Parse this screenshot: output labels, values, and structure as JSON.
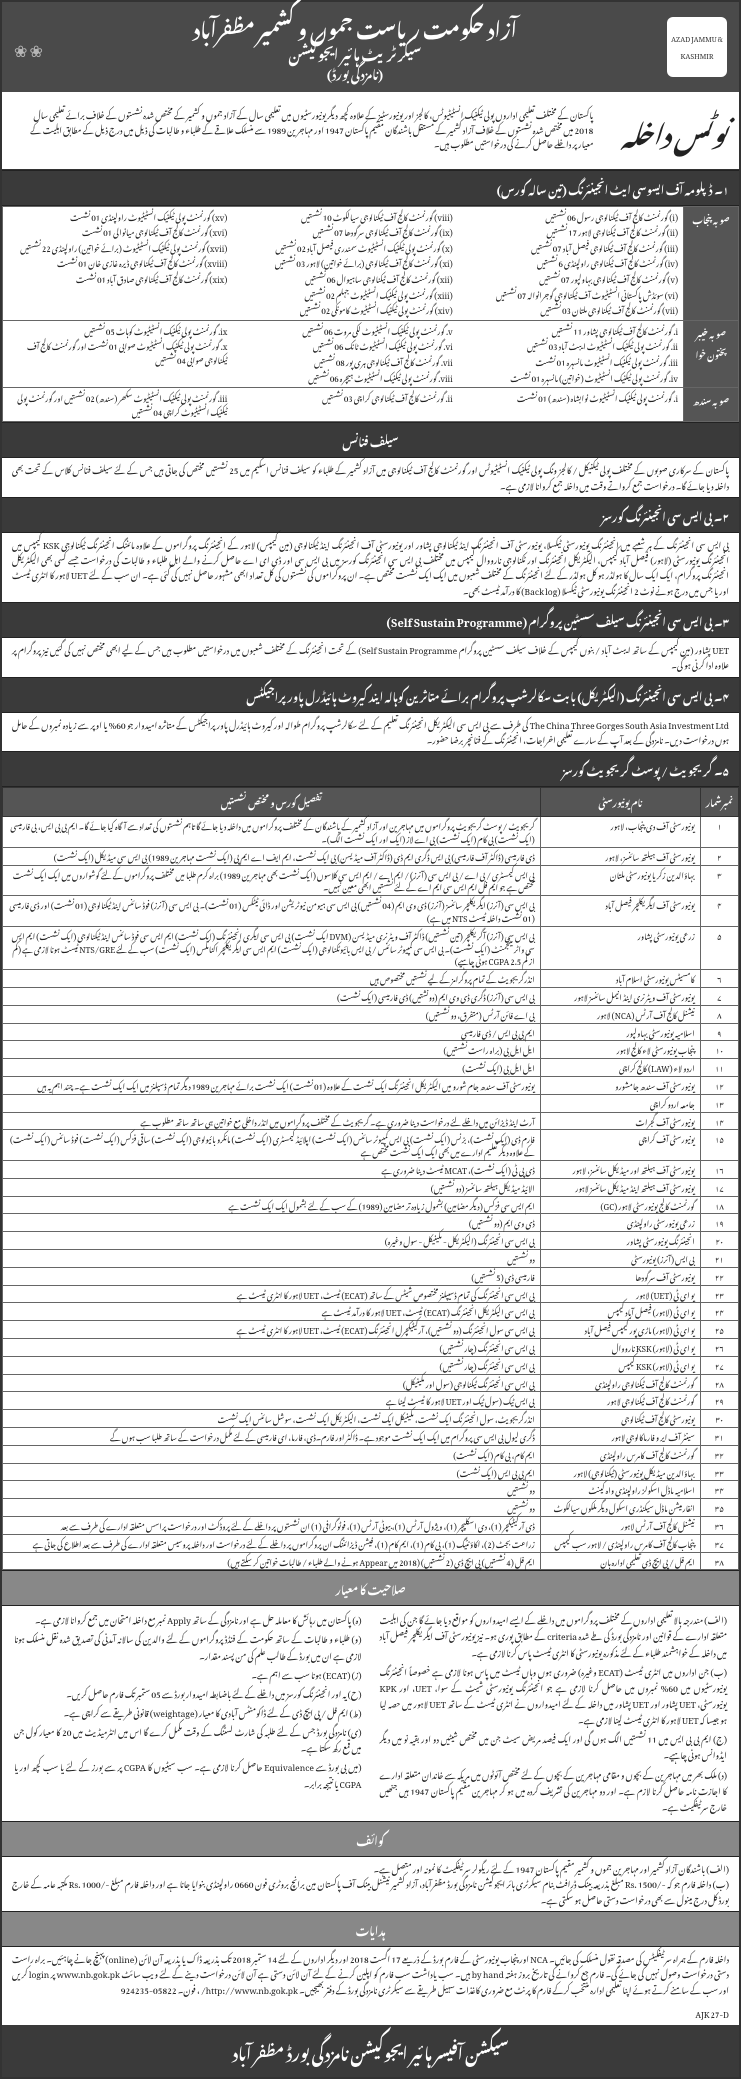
{
  "header": {
    "logo_text": "AZAD JAMMU & KASHMIR",
    "title": "آزاد حکومت ریاست جموں و کشمیر مظفرآباد",
    "subtitle": "سیکرٹریٹ ہائیر ایجوکیشن",
    "board": "(نامزدگی بورڈ)"
  },
  "notice": {
    "heading": "نوٹس داخلہ",
    "body": "پاکستان کے مختلف تعلیمی اداروں پولی ٹیکنیک انسٹیٹیوٹس، کالجز اور یونیورسٹیز کے علاوہ کچھ دیگر یونیورسٹیوں میں تعلیمی سال کے آزاد جموں و کشمیر کے مختص شدہ نشستوں کے خلاف برائے تعلیمی سال 2018 میں مختص شدہ نشستوں کے خلاف آزاد کشمیر کے مستقل باشندگان مقیم پاکستان 1947 اور مہاجرین 1989 سے منسلک علاقے کے طلباء و طالبات کی ذیل میں درج ذیل کے مطابق اہلیت کے معیار پر داخلے حاصل کرنے کی درخواستیں مطلوب ہیں۔"
  },
  "sec1": {
    "title": "۱۔ ڈپلومہ آف ایسوسی ایٹ انجینئرنگ (تین سالہ کورس)"
  },
  "punjab": {
    "label": "صوبہ پنجاب",
    "items": [
      "(i) گورنمنٹ کالج آف ٹیکنالوجی رسول 06 نشستیں",
      "(ii) گورنمنٹ کالج آف ٹیکنالوجی لاہور 17 نشستیں",
      "(iii) گورنمنٹ کالج آف ٹیکنالوجی فیصل آباد 07 نشستیں",
      "(iv) گورنمنٹ کالج آف ٹیکنالوجی راولپنڈی 6 نشستیں",
      "(v) گورنمنٹ کالج آف ٹیکنالوجی بہاولپور 07 نشستیں",
      "(vi) سوئڈش پاکستانی انسٹیٹیوٹ آف ٹیکنالوجی گوجرانوالہ 07 نشستیں",
      "(vii) گورنمنٹ کالج آف ٹیکنالوجی ملتان 03 نشستیں",
      "(viii) گورنمنٹ کالج آف ٹیکنالوجی سیالکوٹ 10 نشستیں",
      "(ix) گورنمنٹ کالج آف ٹیکنالوجی سرگودھا 07 نشستیں",
      "(x) گورنمنٹ پولی ٹیکنیک انسٹیٹیوٹ سمندری فیصل آباد 02 نشستیں",
      "(xi) گورنمنٹ کالج آف ٹیکنالوجی (برائے خواتین) لاہور 03 نشستیں",
      "(xii) گورنمنٹ کالج آف ٹیکنالوجی ساہیوال 06 نشستیں",
      "(xiii) گورنمنٹ پولی ٹیکنیک انسٹیٹیوٹ جہلم 02 نشستیں",
      "(xiv) گورنمنٹ پولی ٹیکنیک انسٹیٹیوٹ کامونکی 02 نشستیں",
      "(xv) گورنمنٹ پولی ٹیکنیک انسٹیٹیوٹ راولپنڈی 01 نشست",
      "(xvi) گورنمنٹ کالج آف ٹیکنالوجی میانوالی 01 نشست",
      "(xvii) گورنمنٹ پولی ٹیکنیک انسٹیٹیوٹ (برائے خواتین) راولپنڈی 22 نشستیں",
      "(xviii) گورنمنٹ کالج آف ٹیکنالوجی ڈیرہ غازی خان 01 نشست",
      "(xix) گورنمنٹ کالج آف ٹیکنالوجی صادق آباد 01 نشست"
    ]
  },
  "kpk": {
    "label": "صوبہ خیبر پختون خوا",
    "items": [
      "i. گورنمنٹ کالج آف ٹیکنالوجی پشاور 11 نشستیں",
      "ii. گورنمنٹ پولی ٹیکنیک انسٹیٹیوٹ ایبٹ آباد 03 نشستیں",
      "iii. گورنمنٹ پولی ٹیکنیک انسٹیٹیوٹ مانسہرہ 01 نشست",
      "iv. گورنمنٹ پولی ٹیکنیک انسٹیٹیوٹ (خواتین) مانسہرہ 01 نشست",
      "v. گورنمنٹ پولی ٹیکنیک انسٹیٹیوٹ لکی مروت 06 نشستیں",
      "vi. گورنمنٹ پولی ٹیکنیک انسٹیٹیوٹ ٹانک 06 نشستیں",
      "vii. گورنمنٹ کالج آف ٹیکنالوجی ہری پور 08 نشستیں",
      "viii. گورنمنٹ پولی ٹیکنیک انسٹیٹیوٹ ہیچرہ 06 نشستیں",
      "ix. گورنمنٹ پولی ٹیکنیک انسٹیٹیوٹ کوہاٹ 05 نشستیں",
      "x. گورنمنٹ پولی ٹیکنیک انسٹیٹیوٹ صوابی 01 نشست اور گورنمنٹ کالج آف ٹیکنالوجی صوابی 04 نشستیں"
    ]
  },
  "sindh": {
    "label": "صوبہ سندھ",
    "items": [
      "i. گورنمنٹ پولی ٹیکنیک انسٹیٹیوٹ نوابشاہ (سندھ) 01 نشست",
      "ii. گورنمنٹ کالج آف ٹیکنالوجی کراچی 03 نشستیں",
      "iii. گورنمنٹ پولی ٹیکنیک انسٹیٹیوٹ سکھر (سندھ) 02 نشستیں اور گورنمنٹ پولی ٹیکنیک انسٹیٹیوٹ کراچی 04 نشستیں"
    ]
  },
  "selffinance": {
    "title": "سیلف فنانس",
    "body": "پاکستان کے سرکاری صوبوں کے مختلف پولی ٹیکنیکل / کالجز ونگ پولی ٹیکنیک انسٹیٹیوٹس اور گورنمنٹ کالج آف ٹیکنالوجی میں آزاد کشمیر کے طلباء کو سیلف فنانس اسکیم میں 25 نشستیں مختص کی جاتی ہیں جس کے لئے سیلف فنانس کلاس کے تحت بھی داخلہ دیا جائے گا۔ درخواست جمع کرواتے وقت میں داخلہ جمع کروانا لازمی ہے۔"
  },
  "sec2": {
    "title": "۲۔ بی ایس سی انجینئرنگ کورسز",
    "body": "بی ایس سی انجینئرنگ کے ہر شعبے میں انجینئرنگ یونیورسٹی ٹیکسلا، یونیورسٹی آف انجینئرنگ اینڈ ٹیکنالوجی پشاور اور یونیورسٹی آف انجینئرنگ اینڈ ٹیکنالوجی (مین کیمپس) لاہور کے انجینئرنگ پروگراموں کے علاوہ مائننگ انجینئرنگ ٹیکنالوجی KSK کیمپس میں انجینئرنگ یونیورسٹی (لاہور) فیصل آباد کیمپس، الیکٹریکل انجینئرنگ اور ٹکنالوجی نارووال کیمپس میں مختلف بی ایس سی انجینئرنگ کورسز میں بی ایس سی اور ڈی ای اے حاصل کرنے والے اہل طلباء و طالبات کی درخواست جسے کسی بھی الیکٹریکل انجینئرنگ پروگرام، ایک ایک سال کا ہولڈر ہو کل ہولڈر کے لئے انجینئرنگ کے مختلف شعبوں میں ایک ایک نشست مختص ہے۔ ان پروگراموں کی نشستوں کی کل تعداد ابھی مشہور حاصل نہیں کی گئی ہے۔ ان سب کے لئے UET لاہور کا انٹری ٹیسٹ اور یا جس میں درج ہونے نوٹ 2 انجینئرنگ یونیورسٹی ٹیکسلا (Back log) کا درآمد ٹیسٹ بھی۔"
  },
  "sec3": {
    "title": "۳۔ بی ایس سی انجینئرنگ سیلف سسٹین پروگرام (Self Sustain Programme)",
    "body": "UET پشاور (مین کیمپس کے ساتھ ایبٹ آباد / بنوں کیمپس کے خلاف سیلف سسٹین پروگرام Self Sustain Programme) کے تحت انجینئرنگ کے مختلف شعبوں میں درخواستیں مطلوب ہیں جس کے لیے ابھی مختص نہیں کی گئیں نیز پروگرام پر علاوہ ادا کرنی ہو گی۔"
  },
  "sec4": {
    "title": "۴۔ بی ایس سی انجینئرنگ (الیکٹریکل) بابت سکالرشپ پروگرام برائے متاثرین کوہالہ ایند کیروٹ ہائیڈرل پاور پراجیکٹس",
    "body": "The China Three Gorges South Asia Investment Ltd کی طرف سے بی ایس سی الیکٹریکل انجینئرنگ تعلیم کے لئے سکالرشپ پروگرام طوالہ اور کیروٹ ہائیڈرل پاور پراجیکٹس کے متاثرہ امیدوار جو 60% یا اوپر سے زیادہ نمبروں کے حامل ہوں درخواست دیں۔ نامزدگی کے بعد آپ کے سارے تعلیمی اخراجات، انجینئرنگ کے فنانچر برضا حضور۔"
  },
  "sec5": {
    "title": "۵۔ گریجویٹ / پوسٹ گریجویٹ کورسز"
  },
  "uni_headers": {
    "num": "نمبرشمار",
    "name": "نام یونیورسٹی",
    "detail": "تفصیل کورس و مختص نشستیں"
  },
  "unis": [
    {
      "n": "۱",
      "name": "یونیورسٹی آف دی پنجاب، لاہور",
      "d": "گریجویٹ / پوسٹ گریجویٹ پروگراموں میں مہاجرین اور آزاد کشمیر کے باشندگان کے مختلف پروگراموں میں داخلہ دیا جائے گا تاہم نشستوں کی تعداد سے آگاہ کیا جائے گا۔ ایم بی بی ایس، بی فارمیسی (ایک نشست) بی کام (ایک نشست) بی اے لاز (ایک اور ایک نشست الگ)۔"
    },
    {
      "n": "۲",
      "name": "یونیورسٹی آف ہیلتھ سائنسز، لاہور",
      "d": "ڈی فارمیسی (ڈاکٹر آف فارمیسی) بی ایس ڈگری ایم ڈی (ڈاکٹر آف میڈیسن) بی ایک نشست، ایم ایف اے ایم پی (ایک نشست مہاجرین 1989) بی ایس سی میڈیکل (ایک نشست)"
    },
    {
      "n": "۳",
      "name": "بہاؤالدین زکریا یونیورسٹی ملتان",
      "d": "بی ایس کیمسٹری / بی اے / بی ایس سی (آنرز) / ایم اے / ایم ایس سی کلاسوں (ایک نشست بھی مہاجرین 1989) براہ کرم طلبا میں مختلف پروگراموں کے لئے گوشواروں میں ایک ایک نشست مختص ہے جو ایم فل ایم ایس سی ایم اے کے لئے نشستیں ابھی معین نہیں۔"
    },
    {
      "n": "۴",
      "name": "یونیورسٹی آف ایگریکلچر فیصل آباد",
      "d": "بی ایس سی (آنرز) ایگریکلچر سائنسز (آنرز) ڈی وی ایم (04 نشستیں) بی ایس سی ہیومن نیوٹریشن اور ڈائی ٹیٹکس (01 نشست)۔ بی ایس سی (آنرز) فوڈ سائنس اینڈ ٹیکنالوجی (01 نشست) اور ڈی فارمیسی (01 نشست داخلہ ٹیسٹ NTS میں ہے)"
    },
    {
      "n": "۵",
      "name": "زرعی یونیورسٹی پشاور",
      "d": "بی ایس سی (آنرز) آگریکلچر (تین نشستیں) ڈاکٹر آف ویٹرنری میڈیسن (DVM ایک نشست) بی ایس سی ایگری انجینئرنگ (ایک نشست) ایم ایس سی فوڈ سائنس اینڈ ٹیکنالوجی (ایک نشست) ایم ایس سی واٹر مینجمنٹ (ایک نشست)۔ بی ایس سی کمپیوٹر سائنس / بی ایس بائیوٹکنالوجی (ایک نشست) ایم ایس سی ایگریکلچر اکنامکس (ایک نشست) سب کے لئے NTS/GRE ٹیسٹ ہونا لازمی ہے (کم از کم CGPA 2.5 ہونی چاہیے)"
    },
    {
      "n": "۶",
      "name": "کامسیٹس یونیورسٹی اسلام آباد",
      "d": "انڈرگریجویٹ کے تمام پروگرامز کے لیے نشستیں مختصوص ہیں"
    },
    {
      "n": "۷",
      "name": "یونیورسٹی آف ویٹرنری اینڈ انیمل سائنسز لاہور",
      "d": "بی ایس سی (آنرز) ڈگری ڈی وی ایم (دونشتیں) ڈی فارمیسی (ایک نشست)"
    },
    {
      "n": "۸",
      "name": "نیشنل کالج آف آرٹس (NCA) لاہور",
      "d": "بی اے فائن آرٹس (متفرق، دو نشستیں)"
    },
    {
      "n": "۹",
      "name": "اسلامیہ یونیورسٹی بہاولپور",
      "d": "ایم بی بی ایس / ڈی فارمیسی"
    },
    {
      "n": "۱۰",
      "name": "پنجاب یونیورسٹی لاء کالج لاہور",
      "d": "ایل ایل بی (براہ راست نشستیں)"
    },
    {
      "n": "۱۱",
      "name": "اردو لاء (LAW) کالج کراچی",
      "d": "ایل ایل بی (ایک نشست)"
    },
    {
      "n": "۱۲",
      "name": "یونیورسٹی آف سندھ جامشورو",
      "d": "یونیورسٹی آف سندھ جام شورو میں الیکٹریکل انجینئرنگ ایک نشست کے علاوہ (01 نشست) ایک نشست برائے مہاجرین 1989 دیگر تمام ڈسپلنز میں ایک ایک نشست ہے۔ چند اہم یہ ہیں"
    },
    {
      "n": "۱۳",
      "name": "جامعہ اردو کراچی",
      "d": ""
    },
    {
      "n": "۱۴",
      "name": "یونیورسٹی آف گجرات",
      "d": "آرٹ اینڈ ڈیزائن میں داخلے لئے درخواست دینا ضروری ہے۔ گریجویٹ کے مختلف پروگراموں میں انڈر داخلی مع خواتین ہی ساتھ ساتھ مطلوب ہے"
    },
    {
      "n": "۱۵",
      "name": "یونیورسٹی آف کراچی",
      "d": "فارم ڈی (ایک نشست)، بزنس (ایک نشست) بی ایس کمپیوٹر سائنس (ایک نشست) اپلائیڈ کیمسٹری (ایک نشست) مائکرو بائیولوجی (ایک نشست) ساقی فزکس (ایک نشست) فوڈ سائنس (ایک نشست) کے علاوہ دیگر تعلیم ادارے میں بھی ایک ایک نشست مختص ہے"
    },
    {
      "n": "۱۶",
      "name": "یونیورسٹی آف ہیلتھ اور میڈیکل سائنسز، لاہور",
      "d": "ڈی پی ٹی (ایک نشست)، MCAT ٹیسٹ دینا ضروری ہے"
    },
    {
      "n": "۱۷",
      "name": "یونیورسٹی آف ہیلتھ اینڈ میڈیکل سائنسز لاہور",
      "d": "الائیڈ میڈیکل ہیلتھ سائنسز (دو نشستیں)"
    },
    {
      "n": "۱۸",
      "name": "گورنمنٹ کالج یونیورسٹی لاہور (GC)",
      "d": "ایم ایس سی فزکس (دیگر مضامین) بشمول زیادہ تر مضامین (1989) کے سب کے لئے بشمول ایک ایک نشست ہے"
    },
    {
      "n": "۱۹",
      "name": "زرعی یونیورسٹی راولپنڈی",
      "d": "ڈی وی ایم (دو نشستیں)"
    },
    {
      "n": "۲۰",
      "name": "انجینئرنگ یونیورسٹی پشاور",
      "d": "بی ایس سی انجینئرنگ (الیکٹریکل - مکینیکل - سول وغیرہ)"
    },
    {
      "n": "۲۱",
      "name": "بی ایس (آنرز) یونیورسٹی",
      "d": "دو نشستیں"
    },
    {
      "n": "۲۲",
      "name": "یونیورسٹی آف سرگودھا",
      "d": "فارمیسی ڈی (5 نشستیں)"
    },
    {
      "n": "۲۳",
      "name": "یو ای ٹی (UET) لاہور",
      "d": "بی ایس سی انجینئرنگ کی تمام ڈسیپلنز مختصوص شیٹس کے ساتھ (ECAT) ٹیسٹ، UET لاہور کا انٹری ٹیسٹ ہے"
    },
    {
      "n": "۲۴",
      "name": "یو ای ٹی (لاہور) فیصل آباد کیمپس",
      "d": "بی ایس سی الیکٹریکل انجینئرنگ (ECAT) ٹیسٹ، UET لاہور کا درآمد ٹیسٹ ہے"
    },
    {
      "n": "۲۵",
      "name": "یو ای ٹی (لاہور) ماڑی پور کیمپس فیصل آباد",
      "d": "بی ایس سی سول انجینئرنگ (دو نشستیں)، آرکیٹیکچرل انجینئرنگ (ECAT) ٹیسٹ، UET لاہور کا انٹری ٹیسٹ ہے"
    },
    {
      "n": "۲۶",
      "name": "یو ای ٹی (لاہور) KSK نارووال",
      "d": "بی ایس سی انجینئرنگ (چار نشستیں)"
    },
    {
      "n": "۲۷",
      "name": "یو ای ٹی (لاہور) KSK کیمپس",
      "d": "بی ایس سی انجینئرنگ (چار نشستیں)"
    },
    {
      "n": "۲۸",
      "name": "گورنمنٹ کالج آف ٹیکنالوجی راولپنڈی",
      "d": "بی ایس سی انجینئرنگ ٹیکنالوجی (سول اور مکینیکل)"
    },
    {
      "n": "۲۹",
      "name": "گورنمنٹ کالج آف ٹیکنالوجی لاہور",
      "d": "بی ایس ٹیک (سول ٹیک اور UET لاہور کا ٹیسٹ لینا ہے"
    },
    {
      "n": "۳۰",
      "name": "یونیورسٹی کالج آف ٹیکنالوجی",
      "d": "انڈرگریجویٹ، سول انجینئرنگ ایک نشست، مکینیکل ایک نشست، الیکٹریکل ایک نشست، سوشل سائنس ایک نشست"
    },
    {
      "n": "۳۱",
      "name": "سینٹر آف ایر و فارماکالوجی لاہور",
      "d": "ڈگری لیول بی ایس سی پروگرام میں ایک ایک نشست موجود ہے۔ ڈاکٹر اور فارم۔ڈی، فارما، ای فارمیسی کے لئے مکمل درخواست کے ساتھ طلبا سب ہوں گے"
    },
    {
      "n": "۳۲",
      "name": "گورنمنٹ کالج آف کامرس راولپنڈی",
      "d": "ایم کام، بی کام (ایک نشست)"
    },
    {
      "n": "۳۳",
      "name": "بہاؤالدین میڈیکل یونیورسٹی (ٹیکنالوجی) لاہور",
      "d": "ایم بی بی ایس (ایک نشست)"
    },
    {
      "n": "۳۴",
      "name": "اسلامیہ ماڈل اسکولز راولپنڈی واہ کینٹ",
      "d": "دو نشستیں"
    },
    {
      "n": "۳۵",
      "name": "انفارمیشن ماڈل سیکنڈری اسکول دیگر ملکوں سیالکوٹ",
      "d": "دو نشستیں"
    },
    {
      "n": "۳۶",
      "name": "نیشنل کالج آف آرٹس لاہور",
      "d": "ڈی آرکیٹیکچر (1)، دی اسکلپچر (1)، ویژول آرٹس (1)، بیوٹی آرٹس (1)، فوٹوگرافی (1) ان نشستوں پر داخلے کے لئے پروڈکٹ اور درخواست پراسس متعلقہ ادارے کی طرف سے بعد"
    },
    {
      "n": "۳۷",
      "name": "پنجاب کالج آف کامرس راولپنڈی / لاہور سب کیمپس",
      "d": "زراعت بجٹ (2)، اکاؤنٹیگ (1)، بی کام (1)، ایم کام (1)، فیشن ڈیزائننگ ان پروگراموں پر داخلے کے لئے درخواست اور داخلہ پروسیس متعلقہ ادارے کی طرف سے بعد اطلاع کی جاتی ہے"
    },
    {
      "n": "۳۸",
      "name": "ایم فل / پی ایچ ڈی تعلیمی ادارہ ہان",
      "d": "ایم فل (4 نشستیں) پی ایچ ڈی (2 نشستیں) (2018 میں Appear ہونے والے طلباء / طالبات خواتین کر سکتے ہیں)"
    }
  ],
  "criteria_title": "صلاحیت کا معیار",
  "criteria": [
    "(الف) مندرجہ بالا تعلیمی اداروں کے مختلف پروگراموں میں داخلے کے ایسے امیدواروں کو مواقع دیا جائے گا جن کی اہلیت متعلقہ ادارے کے قوانین اور نامزدگی بورڈ کی طے شدہ criteria کے مطابق پوری ہو۔ نیز یونیورسٹی آف ایگریکلچر فیصل آباد میں داخلہ کے خواہشمند طلباء کے لئے مذکورہ یونیورسٹی کا انٹری ٹیسٹ پاس کرنا لازمی ہے۔",
    "(ب) جن اداروں میں انٹری ٹیسٹ (ECAT وغیرہ) ضروری ہوں وہاں ٹیسٹ میں پاس ہونا لازمی ہے خصوصاً انجینئرنگ یونیورسٹیوں میں 60% نمبروں میں حاصل کرنا لازمی ہے جو انجینئرنگ یونیورسٹی شیٹ کے سوا، UET، اور KPK یونیورسٹی، UET پشاور اور UET پشاور میں داخلہ کے لئے امیدواروں نے انٹری ٹیسٹ کے ساتھ UET لاہور میں حصہ لیا ہو جیسا کہ UET لاہور کا انٹری ٹیسٹ لینا لازمی ہے۔",
    "(ج) ایم بی بی ایس میں 11 نشستیں الگ ہوں گی اور ایک فیصد مریض سیٹ جن میں مختص شیٹیں دو اور بقیہ نو میں دیگر ایڈوانس ہونی چاہیے۔",
    "(د) ملک بھر میں مہاجرین کے بچوں و مقامی مہاجرین کے بچوں کے لئے مختص آئوٹوں میں مریکہ سے خاندان متعلقہ ادارے کا اجازت نامہ حاصل کرنا لازم ہے۔ اور دو مہاجرین کی تشریف کردہ میں ہو کر مہاجرین مقیم پاکستان 1947 ہیں جنھیں خارج سرٹیفکیٹ ہے۔",
    "(ہ) پاکستان میں رہائش کا معاملہ حل ہے اور نامزدگی کے ساتھ Apply نمبر مع داخلہ امتحان میں جمع کروانا لازمی ہے۔",
    "(و) طلباء و طالبات کے ساتھ حکومت کے فنڈڈ پروگراموں کے لئے والدین کی سالانہ آمدنی کی تصدیق شدہ نقل منسلک ہونا لازمی ہے ان میں بورڈ کے طالب علم کی من پسند مقدار۔",
    "(ز) (ECAT) ہونا سب سے اہم ہے۔",
    "(ح) یہ اور انجینئرنگ کورسز میں داخلے کے لئے باضابطہ امیدوار بورڈ سے 05 ستمبر تک فارم حاصل کریں۔",
    "(ط) ایم فل / پی ایچ ڈی کے لئے ڈاکومنٹس آبادی کا معیار (weightage) قانونی طریقے سے کراچی ہے۔",
    "(ی) نامزدگی بورڈ جس کے لئے طلبہ کی شارٹ لسٹنگ کے وقت مکمل کرے گا اس میں انٹرمیڈیٹ میں 20 کا معیار کول جن میں قمع رکھ سکتا ہے۔",
    "(میں بی بورڈ سے Equivalence حاصل کرنا لازمی ہے۔ سب سیٹیوں کا CGPA پر سے بورز کے لئے یا سب کچھ اور یا CGPA یا نتیجہ برابر۔"
  ],
  "kawaif_title": "کوائف",
  "kawaif": [
    "(الف) باشندگان آزاد کشمیر اور مہاجرین جموں و کشمیر مقیم پاکستان 1947 کے لئے ریگولر سرٹیفکیٹ کا نمونہ اور متصل ہے۔",
    "(ب) داخلہ فارم جو کہ -/Rs. 1500 مبلغ بذریعہ بینک ڈرافٹ بنام سیکرٹری ہائر ایجوکیشن نامزدگی بورڈ مظفرآباد، آزاد کشمیر نیشنل بینک آف پاکستان مین برانچ بروٹری فون 0660 راولپنڈی بنوایا جانا ہے اور داخلہ فارم مبلغ -/Rs. 1000 مکتبہ عامہ کے خارج بورڈ کل درج مینول سے بھی درخواست دستی حاصل ہو سکتی ہے۔"
  ],
  "hidayat_title": "ہدایات",
  "hidayat": "داخلہ فارم کے ہمراہ سرٹیفکیٹس کی مصدقہ نقول منسلک کی جائیں۔ NCA اور پنجاب یونیورسٹی کے فارم بورڈ کے ذریعے 17 اگست 2018 اور دیگر اداروں کے لئے 14 ستمبر 2018 تک بذریعہ ڈاک یا بذریعہ آن لائن (online) پہنچ جانے چاہئیں۔ براہ راست دستی درخواست وصول نہیں کی جائے گی۔ فارم جع کروانے کی تاریخ بروز ہفتہ by hand ہیں۔ سب یاداشت سب فارم کو اپلین کرنے کے لئے آن لائن دستی ہے آن لائن درخواست دینے کے لئے ویب سائٹ www.nb.gok.pk پر login کریں اور سب کے سامنے کرتے ہوئے اپنا تعلیمی ادارہ منتخب کرکے فارم کا پرنٹ مع ضروری کاغذات سہیل طریقے سے سیکرٹری نامزدگی بورڈ کے دفتر بھیجیں۔ http://www.nb.gok.pk/ ، فون۔ 05822-924235",
  "ref": "AJK 27-D",
  "footer": "سیکشن آفیسر ہائیر ایجوکیشن نامزدگی بورڈ مظفر آباد"
}
